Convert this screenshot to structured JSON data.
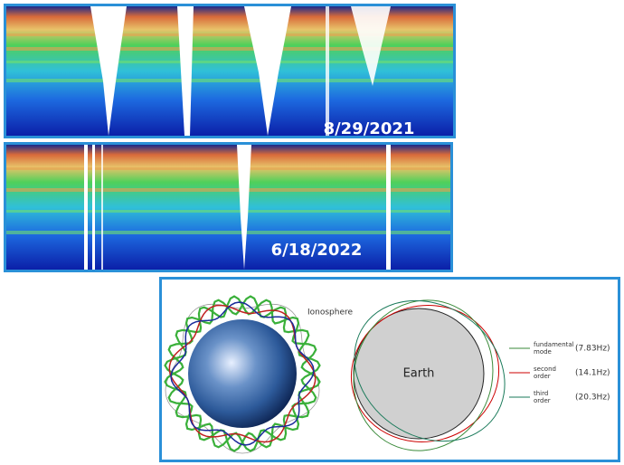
{
  "panels": [
    {
      "date": "8/29/2021"
    },
    {
      "date": "6/18/2022"
    }
  ],
  "diagram": {
    "ionosphere_label": "Ionosphere",
    "earth_label": "Earth",
    "modes": [
      {
        "name_lines": [
          "fundamental",
          "mode"
        ],
        "frequency": "(7.83Hz)"
      },
      {
        "name_lines": [
          "second",
          "order"
        ],
        "frequency": "(14.1Hz)"
      },
      {
        "name_lines": [
          "third",
          "order"
        ],
        "frequency": "(20.3Hz)"
      }
    ]
  }
}
